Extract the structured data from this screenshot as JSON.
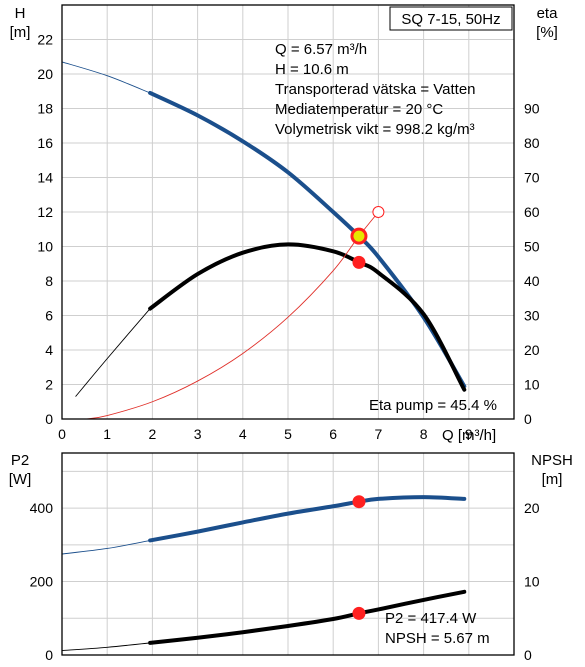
{
  "colors": {
    "head_curve": "#1b4f8c",
    "efficiency_curve": "#000000",
    "system_curve": "#e0302a",
    "power_curve": "#1b4f8c",
    "npsh_curve": "#000000",
    "operating_point": "#ff2020",
    "operating_point_ring": "#e6e600",
    "grid": "#cfcfcf"
  },
  "chart_data": [
    {
      "type": "line",
      "title": "SQ 7-15, 50Hz",
      "left_axis": {
        "label_line1": "H",
        "label_line2": "[m]",
        "range": [
          0,
          24
        ],
        "ticks": [
          0,
          2,
          4,
          6,
          8,
          10,
          12,
          14,
          16,
          18,
          20,
          22
        ]
      },
      "right_axis": {
        "label_line1": "eta",
        "label_line2": "[%]",
        "range": [
          0,
          120
        ],
        "ticks": [
          0,
          10,
          20,
          30,
          40,
          50,
          60,
          70,
          80,
          90
        ]
      },
      "x_axis": {
        "label": "Q [m³/h]",
        "range": [
          0,
          10
        ],
        "ticks": [
          0,
          1,
          2,
          3,
          4,
          5,
          6,
          7,
          8,
          9
        ]
      },
      "grid": true,
      "info_lines": [
        "Q = 6.57 m³/h",
        "H = 10.6 m",
        "Transporterad vätska = Vatten",
        "Mediatemperatur = 20 °C",
        "Volymetrisk vikt = 998.2 kg/m³"
      ],
      "eta_pump_text": "Eta pump = 45.4 %",
      "series": [
        {
          "key": "head",
          "axis": "left",
          "x": [
            0.0,
            1.0,
            1.95,
            3.0,
            4.0,
            5.0,
            6.0,
            6.57,
            7.0,
            8.0,
            8.9
          ],
          "y": [
            20.7,
            19.9,
            18.9,
            17.6,
            16.1,
            14.3,
            12.0,
            10.6,
            9.4,
            5.9,
            1.9
          ],
          "bold_from": 1.95
        },
        {
          "key": "efficiency",
          "axis": "right",
          "x": [
            0.3,
            1.0,
            1.95,
            3.0,
            4.0,
            5.0,
            6.0,
            6.57,
            7.0,
            8.0,
            8.9
          ],
          "y": [
            6.5,
            17.5,
            32.0,
            42.0,
            48.2,
            50.6,
            48.6,
            45.4,
            42.4,
            30.4,
            8.5
          ],
          "bold_from": 1.95
        },
        {
          "key": "system",
          "axis": "left",
          "x": [
            0.55,
            1.0,
            2.0,
            3.0,
            4.0,
            5.0,
            6.0,
            6.57,
            7.0
          ],
          "y": [
            0.0,
            0.2,
            1.0,
            2.2,
            3.8,
            5.9,
            8.6,
            10.6,
            12.0
          ]
        }
      ],
      "operating_points": [
        {
          "series": "head",
          "x": 6.57,
          "y": 10.6,
          "style": "ringed"
        },
        {
          "series": "efficiency",
          "x": 6.57,
          "y": 45.4,
          "style": "filled"
        },
        {
          "series": "system",
          "x": 7.0,
          "y": 12.0,
          "style": "open"
        }
      ]
    },
    {
      "type": "line",
      "left_axis": {
        "label_line1": "P2",
        "label_line2": "[W]",
        "range": [
          0,
          550
        ],
        "ticks": [
          0,
          200,
          400
        ]
      },
      "right_axis": {
        "label_line1": "NPSH",
        "label_line2": "[m]",
        "range": [
          0,
          27.5
        ],
        "ticks": [
          0,
          10,
          20
        ]
      },
      "x_axis": {
        "range": [
          0,
          10
        ]
      },
      "grid": true,
      "info_lines": [
        "P2 = 417.4 W",
        "NPSH = 5.67 m"
      ],
      "series": [
        {
          "key": "power",
          "axis": "left",
          "x": [
            0.0,
            1.0,
            1.95,
            3.0,
            4.0,
            5.0,
            6.0,
            6.57,
            7.0,
            8.0,
            8.9
          ],
          "y": [
            275,
            290,
            312,
            336,
            361,
            385,
            405,
            417.4,
            425,
            430,
            425
          ],
          "bold_from": 1.95
        },
        {
          "key": "npsh",
          "axis": "right",
          "x": [
            0.0,
            1.0,
            1.95,
            3.0,
            4.0,
            5.0,
            6.0,
            6.57,
            7.0,
            8.0,
            8.9
          ],
          "y": [
            0.6,
            1.05,
            1.65,
            2.35,
            3.1,
            3.95,
            4.9,
            5.67,
            6.2,
            7.5,
            8.6
          ],
          "bold_from": 1.95
        }
      ],
      "operating_points": [
        {
          "series": "power",
          "x": 6.57,
          "y": 417.4,
          "style": "filled"
        },
        {
          "series": "npsh",
          "x": 6.57,
          "y": 5.67,
          "style": "filled"
        }
      ]
    }
  ]
}
